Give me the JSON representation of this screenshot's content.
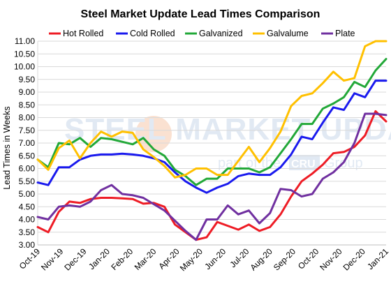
{
  "chart_data": {
    "type": "line",
    "title": "Steel Market Update Lead Times Comparison",
    "ylabel": "Lead Times in Weeks",
    "xlabel": "",
    "ylim": [
      3.0,
      11.0
    ],
    "y_ticks": [
      "3.00",
      "3.50",
      "4.00",
      "4.50",
      "5.00",
      "5.50",
      "6.00",
      "6.50",
      "7.00",
      "7.50",
      "8.00",
      "8.50",
      "9.00",
      "9.50",
      "10.00",
      "10.50",
      "11.00"
    ],
    "x_tick_labels": [
      "Oct-19",
      "Nov-19",
      "Dec-19",
      "Jan-20",
      "Feb-20",
      "Mar-20",
      "Apr-20",
      "May-20",
      "Jun-20",
      "Jul-20",
      "Aug-20",
      "Sep-20",
      "Oct-20",
      "Nov-20",
      "Dec-20",
      "Jan-21"
    ],
    "grid": true,
    "legend_position": "top",
    "watermark": {
      "line1": "STEEL MARKET UPDATE",
      "line2": "part of the",
      "badge": "CRU",
      "line3": "Group"
    },
    "series": [
      {
        "name": "Hot Rolled",
        "color": "#ee1c25",
        "values": [
          3.7,
          3.5,
          4.3,
          4.7,
          4.65,
          4.8,
          4.85,
          4.85,
          4.83,
          4.8,
          4.62,
          4.65,
          4.5,
          3.8,
          3.5,
          3.2,
          3.3,
          3.9,
          3.75,
          3.6,
          3.8,
          3.55,
          3.7,
          4.2,
          4.9,
          5.5,
          5.8,
          6.15,
          6.6,
          6.65,
          6.85,
          7.3,
          8.25,
          7.85
        ]
      },
      {
        "name": "Cold Rolled",
        "color": "#1a1aee",
        "values": [
          5.45,
          5.35,
          6.05,
          6.05,
          6.35,
          6.5,
          6.55,
          6.55,
          6.58,
          6.55,
          6.5,
          6.4,
          6.25,
          5.85,
          5.5,
          5.25,
          5.05,
          5.25,
          5.4,
          5.7,
          5.8,
          5.75,
          5.75,
          6.05,
          6.55,
          7.25,
          7.15,
          7.8,
          8.4,
          8.3,
          8.95,
          8.8,
          9.45,
          9.45
        ]
      },
      {
        "name": "Galvanized",
        "color": "#22a838",
        "values": [
          6.35,
          6.05,
          7.0,
          6.95,
          7.2,
          6.85,
          7.2,
          7.15,
          7.05,
          6.95,
          7.2,
          6.75,
          6.5,
          5.95,
          5.7,
          5.35,
          5.6,
          5.6,
          6.0,
          6.0,
          6.0,
          5.85,
          6.05,
          6.6,
          7.15,
          7.75,
          7.75,
          8.35,
          8.55,
          8.8,
          9.4,
          9.2,
          9.85,
          10.3
        ]
      },
      {
        "name": "Galvalume",
        "color": "#ffc000",
        "values": [
          6.35,
          5.95,
          6.8,
          7.1,
          6.4,
          7.0,
          7.45,
          7.25,
          7.45,
          7.4,
          6.75,
          6.45,
          6.1,
          5.65,
          5.75,
          6.0,
          6.0,
          5.75,
          5.75,
          6.3,
          6.85,
          6.25,
          6.8,
          7.45,
          8.45,
          8.85,
          8.95,
          9.35,
          9.8,
          9.45,
          9.55,
          10.8,
          11.0,
          11.0
        ]
      },
      {
        "name": "Plate",
        "color": "#7030a0",
        "values": [
          4.1,
          4.0,
          4.5,
          4.55,
          4.5,
          4.7,
          5.15,
          5.35,
          5.0,
          4.95,
          4.85,
          4.6,
          4.35,
          3.95,
          3.55,
          3.2,
          4.0,
          4.0,
          4.55,
          4.2,
          4.35,
          3.85,
          4.25,
          5.2,
          5.15,
          4.9,
          5.0,
          5.6,
          5.85,
          6.25,
          7.0,
          8.15,
          8.15,
          8.1
        ]
      }
    ]
  }
}
